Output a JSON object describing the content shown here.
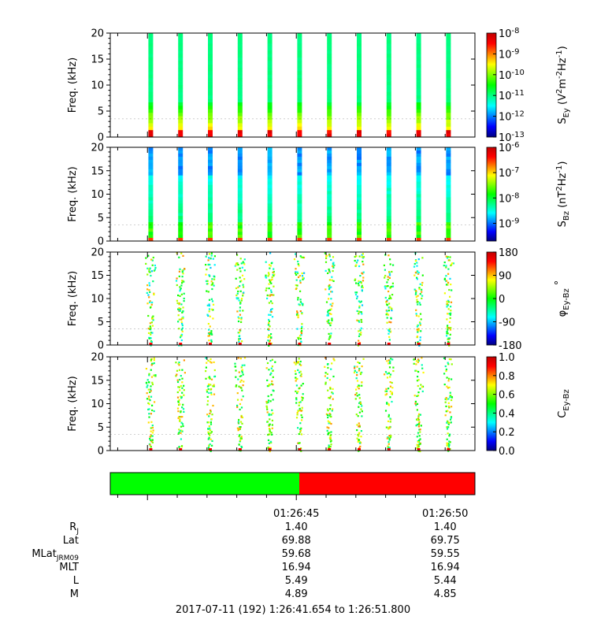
{
  "colors": {
    "background": "#ffffff",
    "band_green": "#00ff00",
    "band_red": "#ff0000",
    "rainbow": [
      "#000080",
      "#0000ff",
      "#0080ff",
      "#00ffff",
      "#00ff80",
      "#00ff00",
      "#80ff00",
      "#ffff00",
      "#ff8000",
      "#ff0000",
      "#c00000"
    ]
  },
  "chart_data": [
    {
      "type": "heatmap",
      "name": "sey",
      "ylabel": "Freq. (kHz)",
      "ylim": [
        0,
        20
      ],
      "yticks": [
        "0",
        "5",
        "10",
        "15",
        "20"
      ],
      "colorbar": {
        "label": "S_Ey (V^2 m^-2 Hz^-1)",
        "scale": "log",
        "range": [
          1e-13,
          1e-08
        ],
        "ticks": [
          {
            "m": "10",
            "e": "-8"
          },
          {
            "m": "10",
            "e": "-9"
          },
          {
            "m": "10",
            "e": "-10"
          },
          {
            "m": "10",
            "e": "-11"
          },
          {
            "m": "10",
            "e": "-12"
          },
          {
            "m": "10",
            "e": "-13"
          }
        ]
      },
      "burst_times_s": [
        1.36,
        2.36,
        3.36,
        4.36,
        5.36,
        6.36,
        7.36,
        8.36,
        9.36,
        10.36,
        11.36
      ],
      "profile": "power-ey"
    },
    {
      "type": "heatmap",
      "name": "sbz",
      "ylabel": "Freq. (kHz)",
      "ylim": [
        0,
        20
      ],
      "yticks": [
        "0",
        "5",
        "10",
        "15",
        "20"
      ],
      "colorbar": {
        "label": "S_Bz (nT^2 Hz^-1)",
        "scale": "log",
        "range": [
          2e-10,
          1e-06
        ],
        "ticks": [
          {
            "m": "10",
            "e": "-6"
          },
          {
            "m": "10",
            "e": "-7"
          },
          {
            "m": "10",
            "e": "-8"
          },
          {
            "m": "10",
            "e": "-9"
          }
        ]
      },
      "burst_times_s": [
        1.36,
        2.36,
        3.36,
        4.36,
        5.36,
        6.36,
        7.36,
        8.36,
        9.36,
        10.36,
        11.36
      ],
      "profile": "power-bz"
    },
    {
      "type": "heatmap",
      "name": "phase",
      "ylabel": "Freq. (kHz)",
      "ylim": [
        0,
        20
      ],
      "yticks": [
        "0",
        "5",
        "10",
        "15",
        "20"
      ],
      "colorbar": {
        "label": "φEy-Bz °",
        "scale": "linear",
        "range": [
          -180,
          180
        ],
        "ticks": [
          "180",
          "90",
          "0",
          "-90",
          "-180"
        ]
      },
      "burst_times_s": [
        1.36,
        2.36,
        3.36,
        4.36,
        5.36,
        6.36,
        7.36,
        8.36,
        9.36,
        10.36,
        11.36
      ],
      "profile": "phase"
    },
    {
      "type": "heatmap",
      "name": "coherence",
      "ylabel": "Freq. (kHz)",
      "ylim": [
        0,
        20
      ],
      "yticks": [
        "0",
        "5",
        "10",
        "15",
        "20"
      ],
      "colorbar": {
        "label": "C_Ey-Bz",
        "scale": "linear",
        "range": [
          0,
          1
        ],
        "ticks": [
          "1.0",
          "0.8",
          "0.6",
          "0.4",
          "0.2",
          "0.0"
        ]
      },
      "burst_times_s": [
        1.36,
        2.36,
        3.36,
        4.36,
        5.36,
        6.36,
        7.36,
        8.36,
        9.36,
        10.36,
        11.36
      ],
      "profile": "coherence"
    }
  ],
  "time_axis": {
    "start_s": 0.0,
    "end_s": 12.25,
    "major_s": [
      1.25,
      6.25
    ],
    "minor_s": [
      0.25,
      2.25,
      3.25,
      4.25,
      5.25,
      7.25,
      8.25,
      9.25,
      10.25,
      11.25
    ],
    "labels": [
      {
        "s": 6.25,
        "text": "01:26:45"
      },
      {
        "s": 11.25,
        "text": "01:26:50"
      }
    ],
    "band": [
      {
        "from_s": 0.0,
        "to_s": 6.35,
        "color": "#00ff00"
      },
      {
        "from_s": 6.35,
        "to_s": 12.25,
        "color": "#ff0000"
      }
    ]
  },
  "ephemeris": {
    "rows": [
      {
        "label": "RJ",
        "label_main": "R",
        "label_sub": "J",
        "values": [
          "1.40",
          "1.40"
        ]
      },
      {
        "label": "Lat",
        "label_main": "Lat",
        "label_sub": "",
        "values": [
          "69.88",
          "69.75"
        ]
      },
      {
        "label": "MLatJRM09",
        "label_main": "MLat",
        "label_sub": "JRM09",
        "values": [
          "59.68",
          "59.55"
        ]
      },
      {
        "label": "MLT",
        "label_main": "MLT",
        "label_sub": "",
        "values": [
          "16.94",
          "16.94"
        ]
      },
      {
        "label": "L",
        "label_main": "L",
        "label_sub": "",
        "values": [
          "5.49",
          "5.44"
        ]
      },
      {
        "label": "M",
        "label_main": "M",
        "label_sub": "",
        "values": [
          "4.89",
          "4.85"
        ]
      }
    ]
  },
  "footer": {
    "time_range": "2017-07-11 (192) 1:26:41.654 to 1:26:51.800"
  }
}
